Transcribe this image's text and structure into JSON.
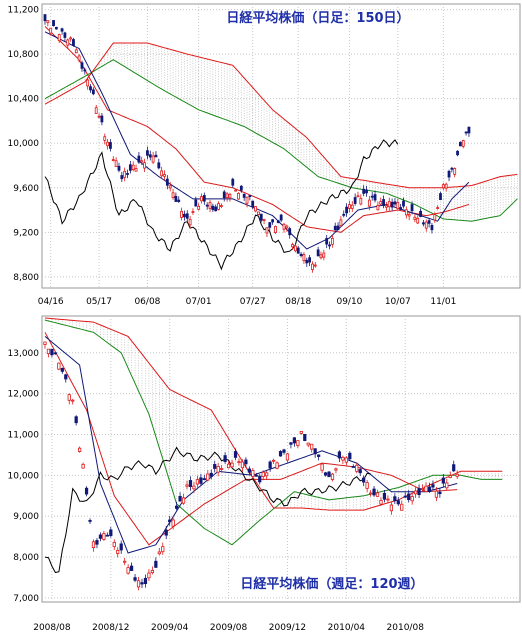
{
  "chart_data": [
    {
      "type": "candlestick",
      "title": "日経平均株価（日足：150日）",
      "ylim": [
        8700,
        11250
      ],
      "yticks": [
        {
          "v": 11200,
          "t": "11,200"
        },
        {
          "v": 10800,
          "t": "10,800"
        },
        {
          "v": 10400,
          "t": "10,400"
        },
        {
          "v": 10000,
          "t": "10,000"
        },
        {
          "v": 9600,
          "t": "9,600"
        },
        {
          "v": 9200,
          "t": "9,200"
        },
        {
          "v": 8800,
          "t": "8,800"
        }
      ],
      "n": 150,
      "xticks": [
        {
          "i": 2,
          "t": "04/16"
        },
        {
          "i": 19,
          "t": "05/17"
        },
        {
          "i": 36,
          "t": "06/08"
        },
        {
          "i": 54,
          "t": "07/01"
        },
        {
          "i": 73,
          "t": "07/27"
        },
        {
          "i": 89,
          "t": "08/18"
        },
        {
          "i": 107,
          "t": "09/10"
        },
        {
          "i": 124,
          "t": "10/07"
        },
        {
          "i": 140,
          "t": "11/01"
        }
      ],
      "grid": true,
      "close_anchors": [
        [
          0,
          11100
        ],
        [
          5,
          11000
        ],
        [
          10,
          10900
        ],
        [
          16,
          10500
        ],
        [
          22,
          10000
        ],
        [
          27,
          9700
        ],
        [
          32,
          9800
        ],
        [
          38,
          9900
        ],
        [
          42,
          9700
        ],
        [
          46,
          9500
        ],
        [
          50,
          9300
        ],
        [
          55,
          9500
        ],
        [
          60,
          9400
        ],
        [
          66,
          9600
        ],
        [
          72,
          9500
        ],
        [
          78,
          9250
        ],
        [
          84,
          9300
        ],
        [
          88,
          9050
        ],
        [
          94,
          8900
        ],
        [
          100,
          9100
        ],
        [
          106,
          9400
        ],
        [
          112,
          9550
        ],
        [
          118,
          9450
        ],
        [
          124,
          9450
        ],
        [
          130,
          9350
        ],
        [
          136,
          9250
        ],
        [
          140,
          9600
        ],
        [
          144,
          9800
        ],
        [
          147,
          10050
        ],
        [
          149,
          10100
        ]
      ],
      "tenkan_anchors": [
        [
          0,
          11000
        ],
        [
          12,
          10850
        ],
        [
          20,
          10450
        ],
        [
          30,
          9900
        ],
        [
          40,
          9700
        ],
        [
          52,
          9500
        ],
        [
          66,
          9500
        ],
        [
          80,
          9350
        ],
        [
          92,
          9050
        ],
        [
          100,
          9150
        ],
        [
          110,
          9400
        ],
        [
          120,
          9450
        ],
        [
          132,
          9350
        ],
        [
          138,
          9300
        ],
        [
          143,
          9500
        ],
        [
          149,
          9650
        ]
      ],
      "kijun_anchors": [
        [
          0,
          11050
        ],
        [
          12,
          10750
        ],
        [
          22,
          10300
        ],
        [
          36,
          10150
        ],
        [
          46,
          9950
        ],
        [
          56,
          9650
        ],
        [
          66,
          9600
        ],
        [
          80,
          9450
        ],
        [
          92,
          9250
        ],
        [
          104,
          9200
        ],
        [
          112,
          9350
        ],
        [
          124,
          9400
        ],
        [
          134,
          9350
        ],
        [
          140,
          9380
        ],
        [
          149,
          9450
        ]
      ],
      "spanA_anchors": [
        [
          0,
          10400
        ],
        [
          14,
          10600
        ],
        [
          24,
          10750
        ],
        [
          40,
          10500
        ],
        [
          54,
          10300
        ],
        [
          70,
          10150
        ],
        [
          84,
          9950
        ],
        [
          96,
          9700
        ],
        [
          108,
          9600
        ],
        [
          120,
          9550
        ],
        [
          130,
          9450
        ],
        [
          140,
          9320
        ],
        [
          150,
          9300
        ],
        [
          160,
          9350
        ],
        [
          166,
          9500
        ]
      ],
      "spanB_anchors": [
        [
          0,
          10350
        ],
        [
          14,
          10550
        ],
        [
          24,
          10900
        ],
        [
          36,
          10900
        ],
        [
          50,
          10800
        ],
        [
          66,
          10700
        ],
        [
          80,
          10300
        ],
        [
          92,
          10050
        ],
        [
          104,
          9700
        ],
        [
          116,
          9650
        ],
        [
          128,
          9600
        ],
        [
          140,
          9600
        ],
        [
          150,
          9620
        ],
        [
          160,
          9700
        ],
        [
          166,
          9720
        ]
      ],
      "lag_anchors": [
        [
          0,
          9700
        ],
        [
          6,
          9300
        ],
        [
          12,
          9500
        ],
        [
          20,
          9900
        ],
        [
          26,
          9350
        ],
        [
          32,
          9500
        ],
        [
          38,
          9200
        ],
        [
          44,
          9050
        ],
        [
          50,
          9300
        ],
        [
          56,
          9100
        ],
        [
          62,
          8900
        ],
        [
          68,
          9100
        ],
        [
          74,
          9350
        ],
        [
          80,
          9150
        ],
        [
          86,
          9000
        ],
        [
          92,
          9350
        ],
        [
          100,
          9500
        ],
        [
          108,
          9600
        ],
        [
          112,
          9850
        ],
        [
          118,
          10000
        ],
        [
          124,
          10000
        ]
      ]
    },
    {
      "type": "candlestick",
      "title": "日経平均株価（週足：120週）",
      "ylim": [
        6900,
        13900
      ],
      "yticks": [
        {
          "v": 13000,
          "t": "13,000"
        },
        {
          "v": 12000,
          "t": "12,000"
        },
        {
          "v": 11000,
          "t": "11,000"
        },
        {
          "v": 10000,
          "t": "10,000"
        },
        {
          "v": 9000,
          "t": "9,000"
        },
        {
          "v": 8000,
          "t": "8,000"
        },
        {
          "v": 7000,
          "t": "7,000"
        }
      ],
      "n": 120,
      "xticks": [
        {
          "i": 2,
          "t": "2008/08"
        },
        {
          "i": 19,
          "t": "2008/12"
        },
        {
          "i": 36,
          "t": "2009/04"
        },
        {
          "i": 53,
          "t": "2009/08"
        },
        {
          "i": 70,
          "t": "2009/12"
        },
        {
          "i": 87,
          "t": "2010/04"
        },
        {
          "i": 104,
          "t": "2010/08"
        }
      ],
      "grid": true,
      "close_anchors": [
        [
          0,
          13200
        ],
        [
          4,
          12800
        ],
        [
          8,
          11800
        ],
        [
          11,
          10200
        ],
        [
          14,
          8300
        ],
        [
          18,
          8600
        ],
        [
          22,
          8100
        ],
        [
          25,
          7600
        ],
        [
          28,
          7300
        ],
        [
          32,
          7800
        ],
        [
          36,
          8800
        ],
        [
          41,
          9700
        ],
        [
          46,
          9900
        ],
        [
          50,
          10200
        ],
        [
          56,
          10400
        ],
        [
          62,
          9900
        ],
        [
          66,
          10300
        ],
        [
          70,
          10600
        ],
        [
          74,
          11000
        ],
        [
          78,
          10600
        ],
        [
          82,
          9900
        ],
        [
          86,
          10500
        ],
        [
          90,
          10200
        ],
        [
          94,
          9600
        ],
        [
          98,
          9400
        ],
        [
          102,
          9300
        ],
        [
          106,
          9500
        ],
        [
          110,
          9700
        ],
        [
          114,
          9600
        ],
        [
          117,
          10000
        ],
        [
          119,
          10100
        ]
      ],
      "tenkan_anchors": [
        [
          0,
          13400
        ],
        [
          10,
          12700
        ],
        [
          16,
          9800
        ],
        [
          24,
          8100
        ],
        [
          32,
          8300
        ],
        [
          40,
          9400
        ],
        [
          50,
          10100
        ],
        [
          60,
          10000
        ],
        [
          70,
          10300
        ],
        [
          80,
          10600
        ],
        [
          90,
          10300
        ],
        [
          100,
          9600
        ],
        [
          110,
          9600
        ],
        [
          119,
          9800
        ]
      ],
      "kijun_anchors": [
        [
          0,
          13500
        ],
        [
          12,
          11600
        ],
        [
          20,
          9500
        ],
        [
          30,
          8300
        ],
        [
          38,
          8800
        ],
        [
          46,
          9300
        ],
        [
          58,
          9900
        ],
        [
          68,
          9900
        ],
        [
          80,
          10300
        ],
        [
          90,
          10200
        ],
        [
          100,
          10000
        ],
        [
          110,
          9600
        ],
        [
          119,
          9650
        ]
      ],
      "spanA_anchors": [
        [
          0,
          13800
        ],
        [
          14,
          13500
        ],
        [
          22,
          13000
        ],
        [
          30,
          11500
        ],
        [
          38,
          9300
        ],
        [
          46,
          8700
        ],
        [
          54,
          8300
        ],
        [
          62,
          8900
        ],
        [
          72,
          9600
        ],
        [
          82,
          9400
        ],
        [
          92,
          9500
        ],
        [
          102,
          9700
        ],
        [
          112,
          10000
        ],
        [
          120,
          10000
        ],
        [
          126,
          9900
        ],
        [
          132,
          9900
        ]
      ],
      "spanB_anchors": [
        [
          0,
          13850
        ],
        [
          14,
          13750
        ],
        [
          24,
          13400
        ],
        [
          36,
          12100
        ],
        [
          48,
          11600
        ],
        [
          58,
          10200
        ],
        [
          66,
          9200
        ],
        [
          74,
          9200
        ],
        [
          82,
          9150
        ],
        [
          92,
          9150
        ],
        [
          102,
          9400
        ],
        [
          112,
          9800
        ],
        [
          120,
          10100
        ],
        [
          126,
          10100
        ],
        [
          132,
          10100
        ]
      ],
      "lag_anchors": [
        [
          0,
          8000
        ],
        [
          4,
          7600
        ],
        [
          8,
          9600
        ],
        [
          12,
          9300
        ],
        [
          16,
          10000
        ],
        [
          20,
          9900
        ],
        [
          24,
          10200
        ],
        [
          28,
          10300
        ],
        [
          32,
          10100
        ],
        [
          38,
          10600
        ],
        [
          44,
          10400
        ],
        [
          50,
          10500
        ],
        [
          56,
          10100
        ],
        [
          62,
          9700
        ],
        [
          66,
          9400
        ],
        [
          70,
          9300
        ],
        [
          74,
          9600
        ],
        [
          78,
          9600
        ],
        [
          84,
          9700
        ],
        [
          90,
          9900
        ],
        [
          94,
          10000
        ]
      ]
    }
  ]
}
